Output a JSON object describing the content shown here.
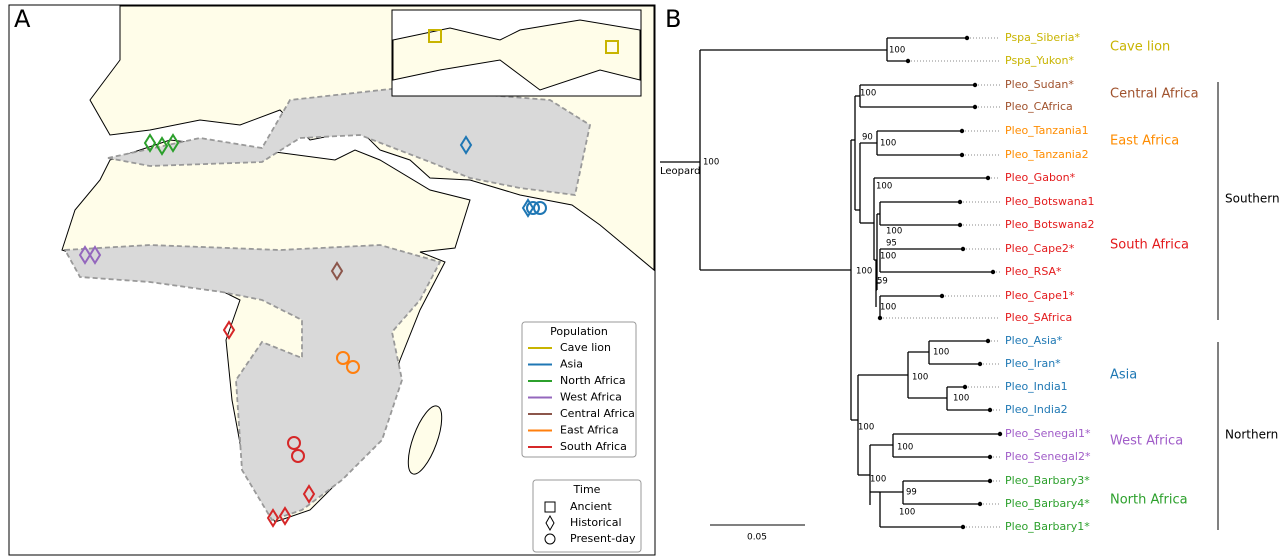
{
  "panel_a": {
    "label": "A",
    "legend_population": {
      "title": "Population",
      "items": [
        {
          "name": "Cave lion",
          "color": "#c8b400"
        },
        {
          "name": "Asia",
          "color": "#1f77b4"
        },
        {
          "name": "North Africa",
          "color": "#2ca02c"
        },
        {
          "name": "West Africa",
          "color": "#9467bd"
        },
        {
          "name": "Central Africa",
          "color": "#8c564b"
        },
        {
          "name": "East Africa",
          "color": "#ff7f0e"
        },
        {
          "name": "South Africa",
          "color": "#d62728"
        }
      ]
    },
    "legend_time": {
      "title": "Time",
      "items": [
        "Ancient",
        "Historical",
        "Present-day"
      ]
    }
  },
  "panel_b": {
    "label": "B",
    "outgroup": "Leopard",
    "scale_bar": "0.05",
    "tips": [
      {
        "name": "Pspa_Siberia*",
        "color": "#c8b400"
      },
      {
        "name": "Pspa_Yukon*",
        "color": "#c8b400"
      },
      {
        "name": "Pleo_Sudan*",
        "color": "#a0522d"
      },
      {
        "name": "Pleo_CAfrica",
        "color": "#a0522d"
      },
      {
        "name": "Pleo_Tanzania1",
        "color": "#ff8c00"
      },
      {
        "name": "Pleo_Tanzania2",
        "color": "#ff8c00"
      },
      {
        "name": "Pleo_Gabon*",
        "color": "#e31a1c"
      },
      {
        "name": "Pleo_Botswana1",
        "color": "#e31a1c"
      },
      {
        "name": "Pleo_Botswana2",
        "color": "#e31a1c"
      },
      {
        "name": "Pleo_Cape2*",
        "color": "#e31a1c"
      },
      {
        "name": "Pleo_RSA*",
        "color": "#e31a1c"
      },
      {
        "name": "Pleo_Cape1*",
        "color": "#e31a1c"
      },
      {
        "name": "Pleo_SAfrica",
        "color": "#e31a1c"
      },
      {
        "name": "Pleo_Asia*",
        "color": "#1f78b4"
      },
      {
        "name": "Pleo_Iran*",
        "color": "#1f78b4"
      },
      {
        "name": "Pleo_India1",
        "color": "#1f78b4"
      },
      {
        "name": "Pleo_India2",
        "color": "#1f78b4"
      },
      {
        "name": "Pleo_Senegal1*",
        "color": "#a05cc8"
      },
      {
        "name": "Pleo_Senegal2*",
        "color": "#a05cc8"
      },
      {
        "name": "Pleo_Barbary3*",
        "color": "#2ca02c"
      },
      {
        "name": "Pleo_Barbary4*",
        "color": "#2ca02c"
      },
      {
        "name": "Pleo_Barbary1*",
        "color": "#2ca02c"
      }
    ],
    "support": [
      100,
      100,
      100,
      90,
      100,
      100,
      100,
      95,
      100,
      59,
      100,
      100,
      100,
      100,
      100,
      100,
      100,
      100,
      99,
      100
    ],
    "clades": [
      {
        "name": "Cave lion",
        "color": "#c8b400"
      },
      {
        "name": "Central Africa",
        "color": "#a0522d"
      },
      {
        "name": "East Africa",
        "color": "#ff8c00"
      },
      {
        "name": "South Africa",
        "color": "#e31a1c"
      },
      {
        "name": "Asia",
        "color": "#1f78b4"
      },
      {
        "name": "West Africa",
        "color": "#a05cc8"
      },
      {
        "name": "North Africa",
        "color": "#2ca02c"
      }
    ],
    "regions": [
      "Southern",
      "Northern"
    ]
  }
}
